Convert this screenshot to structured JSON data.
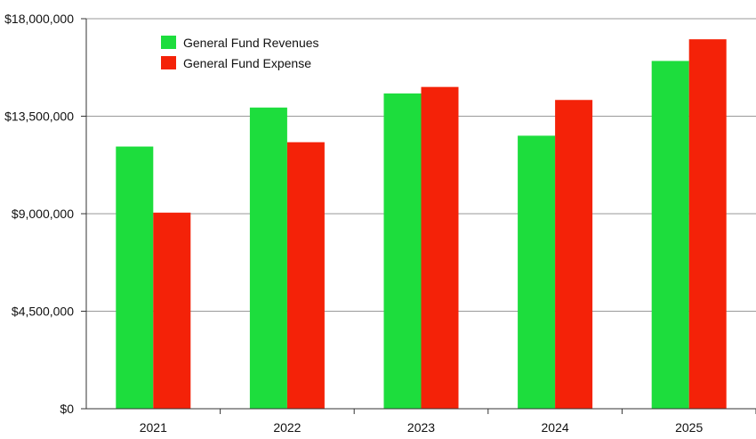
{
  "chart_data": {
    "type": "bar",
    "categories": [
      "2021",
      "2022",
      "2023",
      "2024",
      "2025"
    ],
    "series": [
      {
        "name": "General Fund Revenues",
        "color": "#1ddd3d",
        "values": [
          12100000,
          13900000,
          14550000,
          12600000,
          16050000
        ]
      },
      {
        "name": "General Fund Expense",
        "color": "#f42208",
        "values": [
          9050000,
          12300000,
          14850000,
          14250000,
          17050000
        ]
      }
    ],
    "yticks": [
      {
        "value": 0,
        "label": "$0"
      },
      {
        "value": 4500000,
        "label": "$4,500,000"
      },
      {
        "value": 9000000,
        "label": "$9,000,000"
      },
      {
        "value": 13500000,
        "label": "$13,500,000"
      },
      {
        "value": 18000000,
        "label": "$18,000,000"
      }
    ],
    "ylim": [
      0,
      18000000
    ],
    "grid": true,
    "legend_position": "top-left",
    "title": "",
    "xlabel": "",
    "ylabel": ""
  }
}
